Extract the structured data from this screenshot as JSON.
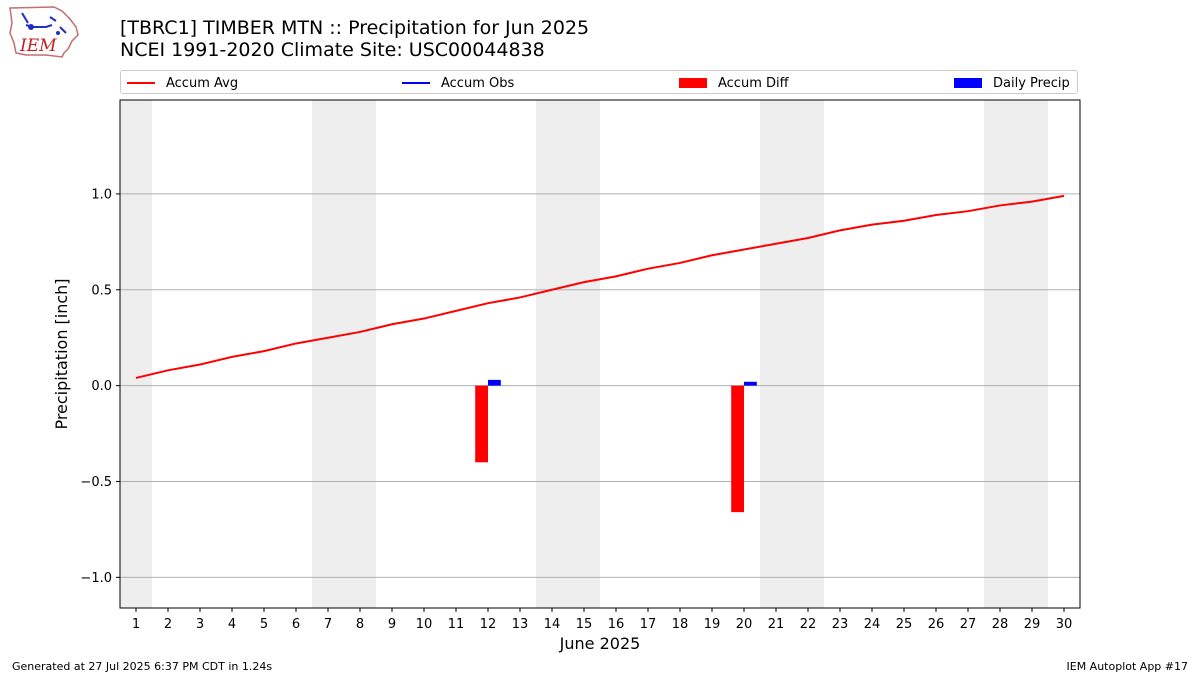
{
  "header": {
    "title_line1": "[TBRC1] TIMBER MTN :: Precipitation for Jun 2025",
    "title_line2": "NCEI 1991-2020 Climate Site: USC00044838",
    "logo_text": "IEM"
  },
  "legend": {
    "items": [
      {
        "label": "Accum Avg",
        "kind": "line",
        "color": "#ff0000"
      },
      {
        "label": "Accum Obs",
        "kind": "line",
        "color": "#0000ff"
      },
      {
        "label": "Accum Diff",
        "kind": "patch",
        "color": "#ff0000"
      },
      {
        "label": "Daily Precip",
        "kind": "patch",
        "color": "#0000ff"
      }
    ]
  },
  "footer": {
    "generated": "Generated at 27 Jul 2025 6:37 PM CDT in 1.24s",
    "app": "IEM Autoplot App #17"
  },
  "chart_data": {
    "type": "bar",
    "xlabel": "June 2025",
    "ylabel": "Precipitation [inch]",
    "x": [
      1,
      2,
      3,
      4,
      5,
      6,
      7,
      8,
      9,
      10,
      11,
      12,
      13,
      14,
      15,
      16,
      17,
      18,
      19,
      20,
      21,
      22,
      23,
      24,
      25,
      26,
      27,
      28,
      29,
      30
    ],
    "xlim": [
      0.5,
      30.5
    ],
    "ylim": [
      -1.16,
      1.49
    ],
    "yticks": [
      1.0,
      0.5,
      0.0,
      -0.5,
      -1.0
    ],
    "ytick_labels": [
      "1.0",
      "0.5",
      "0.0",
      "−0.5",
      "−1.0"
    ],
    "grid": "horizontal",
    "legend_position": "top",
    "weekend_bands": [
      [
        1,
        1
      ],
      [
        7,
        8
      ],
      [
        14,
        15
      ],
      [
        21,
        22
      ],
      [
        28,
        29
      ]
    ],
    "band_color": "#eeeeee",
    "series": [
      {
        "name": "Accum Avg",
        "type": "line",
        "color": "#ff0000",
        "values": [
          0.04,
          0.08,
          0.11,
          0.15,
          0.18,
          0.22,
          0.25,
          0.28,
          0.32,
          0.35,
          0.39,
          0.43,
          0.46,
          0.5,
          0.54,
          0.57,
          0.61,
          0.64,
          0.68,
          0.71,
          0.74,
          0.77,
          0.81,
          0.84,
          0.86,
          0.89,
          0.91,
          0.94,
          0.96,
          0.99
        ]
      },
      {
        "name": "Accum Diff",
        "type": "bar",
        "color": "#ff0000",
        "points": [
          {
            "x": 12,
            "value": -0.4
          },
          {
            "x": 20,
            "value": -0.66
          }
        ]
      },
      {
        "name": "Daily Precip",
        "type": "bar",
        "color": "#0000ff",
        "points": [
          {
            "x": 12,
            "value": 0.03
          },
          {
            "x": 20,
            "value": 0.02
          }
        ]
      }
    ]
  }
}
